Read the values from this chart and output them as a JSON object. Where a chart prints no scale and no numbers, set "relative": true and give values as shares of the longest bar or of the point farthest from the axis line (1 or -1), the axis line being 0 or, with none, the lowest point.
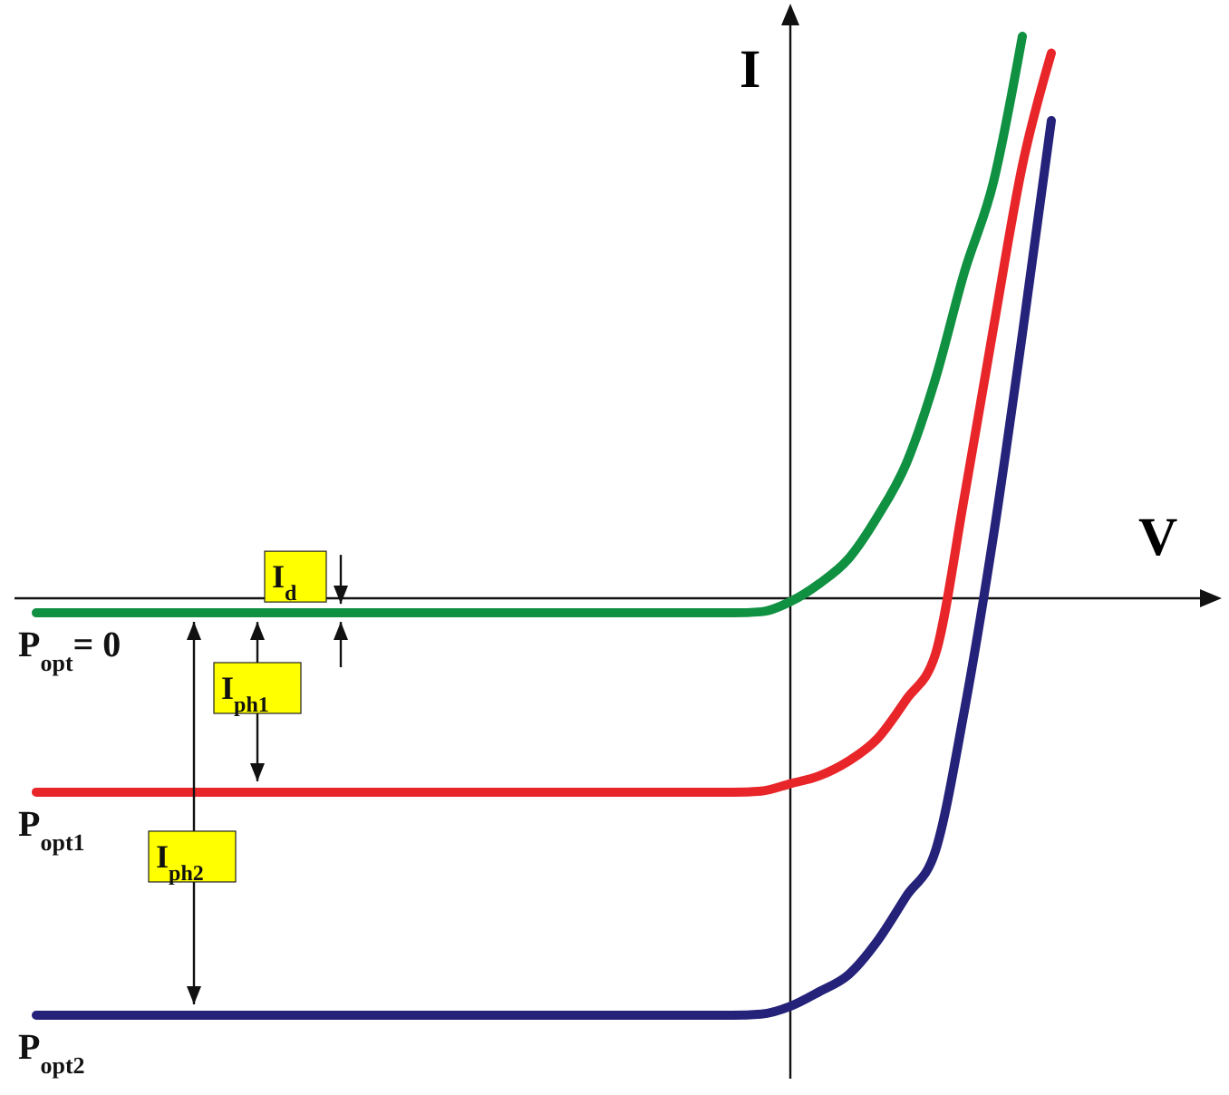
{
  "chart_data": {
    "type": "line",
    "relative": true,
    "xlabel": "V",
    "ylabel": "I",
    "categories": [
      null,
      null,
      null,
      null,
      null,
      null,
      null,
      null,
      null,
      null,
      null,
      null,
      null,
      null,
      null,
      null,
      null,
      null,
      null,
      null,
      null,
      null,
      null,
      null,
      null,
      null,
      null,
      null,
      null,
      null,
      null,
      null,
      null,
      null,
      null,
      null
    ],
    "series": [
      {
        "name": "P$_{opt}$= 0",
        "color": "#109041",
        "values": [
          -0.026,
          -0.026,
          -0.026,
          -0.026,
          -0.026,
          -0.026,
          -0.026,
          -0.026,
          -0.026,
          -0.026,
          -0.026,
          -0.026,
          -0.026,
          -0.026,
          -0.026,
          -0.026,
          -0.026,
          -0.026,
          -0.026,
          -0.026,
          -0.026,
          -0.026,
          -0.026,
          -0.026,
          -0.026,
          -0.024,
          -0.006,
          0.026,
          0.07,
          0.145,
          0.24,
          0.39,
          0.58,
          0.74,
          1,
          null
        ]
      },
      {
        "name": "P$_{opt1}$",
        "color": "#e8262a",
        "values": [
          -0.345,
          -0.345,
          -0.345,
          -0.345,
          -0.345,
          -0.345,
          -0.345,
          -0.345,
          -0.345,
          -0.345,
          -0.345,
          -0.345,
          -0.345,
          -0.345,
          -0.345,
          -0.345,
          -0.345,
          -0.345,
          -0.345,
          -0.345,
          -0.345,
          -0.345,
          -0.345,
          -0.345,
          -0.345,
          -0.343,
          -0.33,
          -0.316,
          -0.29,
          -0.25,
          -0.18,
          -0.1,
          0.18,
          0.48,
          0.77,
          0.97
        ]
      },
      {
        "name": "P$_{opt2}$",
        "color": "#25227a",
        "values": [
          -0.742,
          -0.742,
          -0.742,
          -0.742,
          -0.742,
          -0.742,
          -0.742,
          -0.742,
          -0.742,
          -0.742,
          -0.742,
          -0.742,
          -0.742,
          -0.742,
          -0.742,
          -0.742,
          -0.742,
          -0.742,
          -0.742,
          -0.742,
          -0.742,
          -0.742,
          -0.742,
          -0.742,
          -0.742,
          -0.74,
          -0.726,
          -0.7,
          -0.67,
          -0.61,
          -0.53,
          -0.45,
          -0.2,
          0.11,
          0.47,
          0.85
        ]
      }
    ],
    "annotations": [
      "I$_{d}$",
      "I$_{ph1}$",
      "I$_{ph2}$"
    ]
  }
}
